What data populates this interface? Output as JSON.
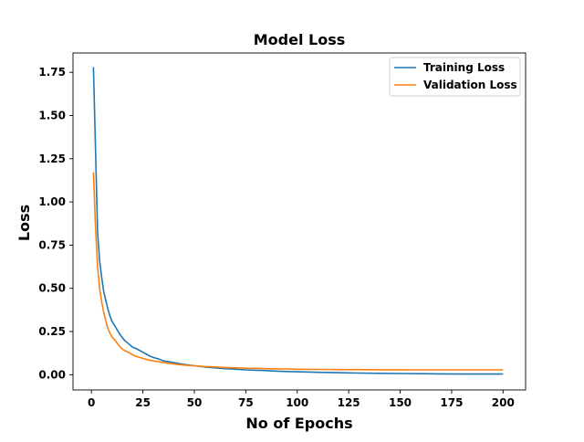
{
  "chart_data": {
    "type": "line",
    "title": "Model Loss",
    "xlabel": "No of Epochs",
    "ylabel": "Loss",
    "xlim": [
      -8.95,
      210.95
    ],
    "ylim": [
      -0.088,
      1.862
    ],
    "xticks": [
      0,
      25,
      50,
      75,
      100,
      125,
      150,
      175,
      200
    ],
    "yticks": [
      0.0,
      0.25,
      0.5,
      0.75,
      1.0,
      1.25,
      1.5,
      1.75
    ],
    "ytick_labels": [
      "0.00",
      "0.25",
      "0.50",
      "0.75",
      "1.00",
      "1.25",
      "1.50",
      "1.75"
    ],
    "grid": false,
    "legend_position": "top-right",
    "series": [
      {
        "name": "Training Loss",
        "color": "#1f77b4",
        "x": [
          1,
          2,
          3,
          4,
          5,
          6,
          7,
          8,
          9,
          10,
          12,
          14,
          16,
          18,
          20,
          22,
          25,
          28,
          30,
          33,
          35,
          38,
          40,
          45,
          50,
          55,
          60,
          65,
          70,
          75,
          80,
          85,
          90,
          95,
          100,
          110,
          120,
          130,
          140,
          150,
          160,
          170,
          180,
          190,
          200
        ],
        "values": [
          1.78,
          1.3,
          0.82,
          0.66,
          0.56,
          0.48,
          0.43,
          0.38,
          0.34,
          0.31,
          0.27,
          0.23,
          0.2,
          0.18,
          0.16,
          0.15,
          0.13,
          0.11,
          0.1,
          0.09,
          0.08,
          0.075,
          0.07,
          0.06,
          0.052,
          0.045,
          0.04,
          0.035,
          0.032,
          0.028,
          0.026,
          0.024,
          0.021,
          0.019,
          0.017,
          0.014,
          0.012,
          0.01,
          0.008,
          0.007,
          0.006,
          0.005,
          0.004,
          0.004,
          0.004
        ]
      },
      {
        "name": "Validation Loss",
        "color": "#ff7f0e",
        "x": [
          1,
          2,
          3,
          4,
          5,
          6,
          7,
          8,
          9,
          10,
          12,
          14,
          16,
          18,
          20,
          22,
          25,
          28,
          30,
          33,
          35,
          38,
          40,
          45,
          50,
          55,
          60,
          65,
          70,
          75,
          80,
          85,
          90,
          95,
          100,
          110,
          120,
          130,
          140,
          150,
          160,
          170,
          180,
          190,
          200
        ],
        "values": [
          1.17,
          0.85,
          0.62,
          0.5,
          0.42,
          0.36,
          0.31,
          0.27,
          0.24,
          0.22,
          0.19,
          0.16,
          0.14,
          0.13,
          0.115,
          0.105,
          0.095,
          0.085,
          0.08,
          0.075,
          0.07,
          0.066,
          0.062,
          0.056,
          0.052,
          0.048,
          0.045,
          0.042,
          0.04,
          0.038,
          0.037,
          0.035,
          0.034,
          0.033,
          0.032,
          0.031,
          0.03,
          0.03,
          0.029,
          0.029,
          0.028,
          0.028,
          0.028,
          0.028,
          0.028
        ]
      }
    ]
  }
}
